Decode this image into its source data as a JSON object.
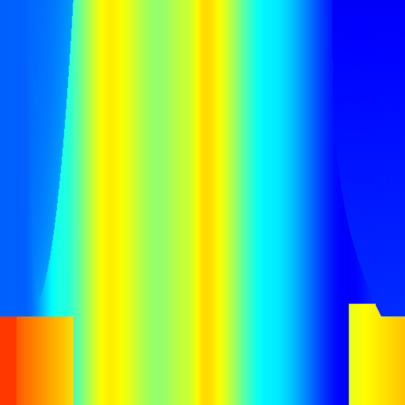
{
  "image": {
    "kind": "color-field",
    "colormap": "jet",
    "description_colors": {
      "deep_blue": "#0a2fe6",
      "blue": "#1a7df0",
      "cyan": "#22f0f5",
      "green": "#3df01e",
      "yellow": "#f7f51e",
      "orange": "#f07a12"
    },
    "bands_top": [
      {
        "from": 0.0,
        "to": 0.12,
        "value": 0.22
      },
      {
        "from": 0.12,
        "to": 0.18,
        "value": 0.4
      },
      {
        "from": 0.18,
        "to": 0.36,
        "value": 0.64
      },
      {
        "from": 0.36,
        "to": 0.42,
        "value": 0.52
      },
      {
        "from": 0.42,
        "to": 0.5,
        "value": 0.57
      },
      {
        "from": 0.5,
        "to": 0.51,
        "value": 0.66
      },
      {
        "from": 0.51,
        "to": 0.82,
        "value": 0.36
      },
      {
        "from": 0.82,
        "to": 0.9,
        "value": 0.12
      },
      {
        "from": 0.9,
        "to": 1.0,
        "value": 0.18
      }
    ],
    "transition_value": 0.78
  }
}
